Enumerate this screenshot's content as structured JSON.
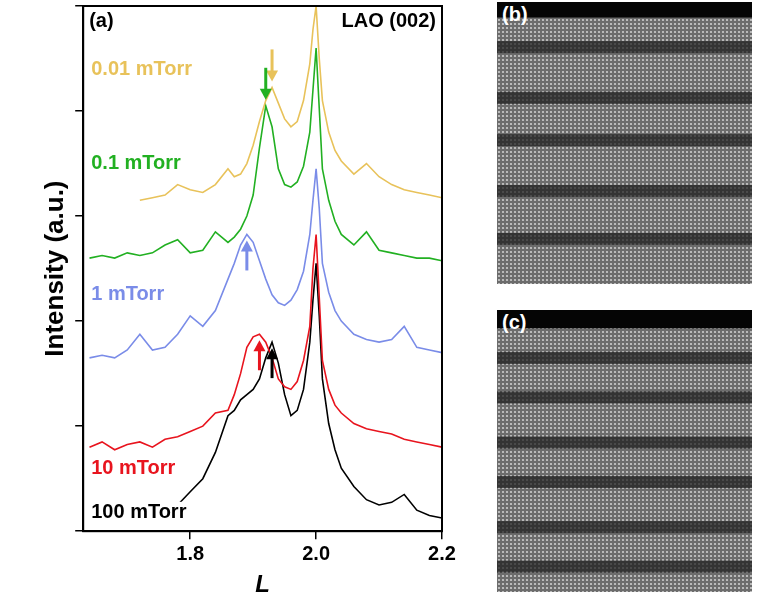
{
  "chart_data": {
    "type": "line",
    "title": "(a)",
    "annotations": [
      {
        "text": "LAO (002)"
      }
    ],
    "x_label": "L",
    "y_label": "Intensity (a.u.)",
    "x": [
      1.64,
      1.66,
      1.68,
      1.7,
      1.72,
      1.74,
      1.76,
      1.78,
      1.8,
      1.82,
      1.84,
      1.86,
      1.87,
      1.88,
      1.89,
      1.9,
      1.91,
      1.92,
      1.93,
      1.94,
      1.95,
      1.96,
      1.97,
      1.98,
      1.99,
      1.995,
      2.0,
      2.005,
      2.01,
      2.02,
      2.03,
      2.04,
      2.06,
      2.08,
      2.1,
      2.12,
      2.14,
      2.16,
      2.18,
      2.2
    ],
    "series": [
      {
        "name": "0.01 mTorr",
        "color": "#e8c25a",
        "values": [
          null,
          null,
          null,
          null,
          6.3,
          6.35,
          6.4,
          6.6,
          6.5,
          6.45,
          6.6,
          6.9,
          6.75,
          6.8,
          7.0,
          7.35,
          7.8,
          8.2,
          8.45,
          8.15,
          7.85,
          7.7,
          7.8,
          8.2,
          8.9,
          9.55,
          10.0,
          9.0,
          8.2,
          7.6,
          7.25,
          7.05,
          6.8,
          7.0,
          6.75,
          6.6,
          6.5,
          6.45,
          6.4,
          6.35
        ]
      },
      {
        "name": "0.1 mTorr",
        "color": "#22b022",
        "values": [
          5.2,
          5.25,
          5.2,
          5.3,
          5.25,
          5.3,
          5.45,
          5.55,
          5.3,
          5.35,
          5.7,
          5.5,
          5.6,
          5.75,
          6.0,
          6.4,
          7.3,
          8.1,
          7.7,
          6.9,
          6.6,
          6.55,
          6.65,
          6.95,
          7.6,
          8.4,
          9.2,
          8.05,
          6.9,
          6.3,
          5.9,
          5.65,
          5.45,
          5.7,
          5.35,
          5.3,
          5.25,
          5.2,
          5.2,
          5.15
        ]
      },
      {
        "name": "1 mTorr",
        "color": "#7a8ce8",
        "values": [
          3.3,
          3.35,
          3.3,
          3.45,
          3.75,
          3.45,
          3.5,
          3.75,
          4.1,
          3.9,
          4.2,
          4.8,
          5.1,
          5.45,
          5.65,
          5.5,
          5.15,
          4.8,
          4.5,
          4.35,
          4.3,
          4.4,
          4.6,
          4.95,
          5.65,
          6.3,
          6.9,
          6.15,
          5.1,
          4.55,
          4.2,
          4.0,
          3.75,
          3.65,
          3.6,
          3.65,
          3.9,
          3.5,
          3.45,
          3.4
        ]
      },
      {
        "name": "10 mTorr",
        "color": "#e8141e",
        "values": [
          1.6,
          1.7,
          1.55,
          1.65,
          1.7,
          1.6,
          1.75,
          1.8,
          1.9,
          2.0,
          2.25,
          2.3,
          2.6,
          3.0,
          3.5,
          3.7,
          3.75,
          3.6,
          3.3,
          2.9,
          2.75,
          2.7,
          2.85,
          3.25,
          3.9,
          5.0,
          5.65,
          4.45,
          3.25,
          2.7,
          2.4,
          2.25,
          2.05,
          1.95,
          1.9,
          1.85,
          1.75,
          1.7,
          1.65,
          1.6
        ]
      },
      {
        "name": "100 mTorr",
        "color": "#000000",
        "values": [
          null,
          null,
          null,
          null,
          null,
          null,
          null,
          0.5,
          0.75,
          1.0,
          1.5,
          2.2,
          2.3,
          2.5,
          2.6,
          2.7,
          2.9,
          3.3,
          3.6,
          3.2,
          2.6,
          2.2,
          2.3,
          2.7,
          3.6,
          4.4,
          5.1,
          4.1,
          2.9,
          2.05,
          1.55,
          1.2,
          0.85,
          0.6,
          0.5,
          0.55,
          0.7,
          0.4,
          0.3,
          0.25
        ]
      }
    ],
    "xlim": [
      1.63,
      2.2
    ],
    "xticks": [
      1.8,
      {
        "value": 2,
        "label": "2.0"
      },
      2.2
    ],
    "ylim": [
      0,
      10
    ],
    "yticks": [
      0,
      2,
      4,
      6,
      8,
      10
    ],
    "grid": false,
    "tick_labels": "x"
  },
  "images": [
    {
      "label": "(b)"
    },
    {
      "label": "(c)"
    }
  ]
}
